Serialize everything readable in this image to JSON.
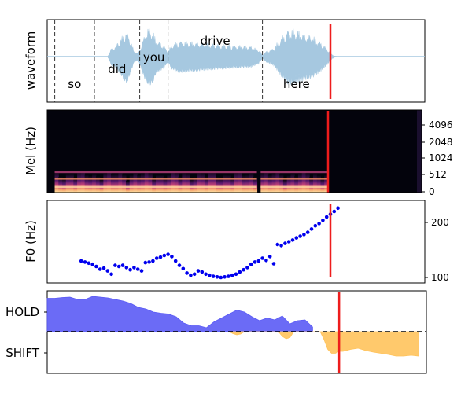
{
  "colors": {
    "waveform": "#a6c8e0",
    "cursor": "#ee1c1c",
    "word_boundary": "#333333",
    "f0_points": "#0000ee",
    "hold_fill": "#5b5bf5",
    "shift_fill": "#ffc35c",
    "spec_background": "#03030c"
  },
  "chart_data": [
    {
      "type": "line",
      "panel": "waveform",
      "ylabel": "waveform",
      "xlim": [
        0,
        100
      ],
      "cursor_x": 75,
      "words": [
        {
          "text": "so",
          "start": 2,
          "end": 12.5
        },
        {
          "text": "did",
          "start": 12.5,
          "end": 24.5
        },
        {
          "text": "you",
          "start": 24.5,
          "end": 32
        },
        {
          "text": "drive",
          "start": 32,
          "end": 57
        },
        {
          "text": "here",
          "start": 57,
          "end": 75
        }
      ],
      "boundaries": [
        2,
        12.5,
        24.5,
        32,
        57
      ],
      "envelope": [
        [
          0,
          0
        ],
        [
          16,
          0
        ],
        [
          17,
          0.25
        ],
        [
          18,
          0.3
        ],
        [
          19,
          0.45
        ],
        [
          20,
          0.6
        ],
        [
          21,
          0.75
        ],
        [
          22,
          0.5
        ],
        [
          23,
          0.15
        ],
        [
          24,
          0.1
        ],
        [
          25,
          0.35
        ],
        [
          26,
          0.7
        ],
        [
          27,
          0.85
        ],
        [
          28,
          0.7
        ],
        [
          29,
          0.45
        ],
        [
          30,
          0.4
        ],
        [
          31,
          0.3
        ],
        [
          32,
          0.15
        ],
        [
          33,
          0.35
        ],
        [
          35,
          0.45
        ],
        [
          38,
          0.42
        ],
        [
          42,
          0.38
        ],
        [
          46,
          0.35
        ],
        [
          50,
          0.32
        ],
        [
          54,
          0.3
        ],
        [
          56,
          0.2
        ],
        [
          57,
          0.05
        ],
        [
          58,
          0.15
        ],
        [
          60,
          0.25
        ],
        [
          62,
          0.55
        ],
        [
          64,
          0.8
        ],
        [
          66,
          0.75
        ],
        [
          68,
          0.65
        ],
        [
          70,
          0.6
        ],
        [
          72,
          0.45
        ],
        [
          74,
          0.25
        ],
        [
          75,
          0.1
        ],
        [
          76,
          0.02
        ],
        [
          77,
          0
        ],
        [
          100,
          0
        ]
      ]
    },
    {
      "type": "heatmap",
      "panel": "mel",
      "ylabel": "Mel (Hz)",
      "yticks": [
        "0",
        "512",
        "1024",
        "2048",
        "4096"
      ],
      "xlim": [
        0,
        100
      ],
      "cursor_x": 75,
      "active_ranges": [
        [
          2,
          56
        ],
        [
          57,
          75
        ]
      ]
    },
    {
      "type": "scatter",
      "panel": "f0",
      "ylabel": "F0 (Hz)",
      "xlim": [
        0,
        100
      ],
      "ylim": [
        90,
        240
      ],
      "yticks": [
        100,
        200
      ],
      "cursor_x": 75,
      "x": [
        9,
        10,
        11,
        12,
        13,
        14,
        15,
        16,
        17,
        18,
        19,
        20,
        21,
        22,
        23,
        24,
        25,
        26,
        27,
        28,
        29,
        30,
        31,
        32,
        33,
        34,
        35,
        36,
        37,
        38,
        39,
        40,
        41,
        42,
        43,
        44,
        45,
        46,
        47,
        48,
        49,
        50,
        51,
        52,
        53,
        54,
        55,
        56,
        57,
        58,
        59,
        60,
        61,
        62,
        63,
        64,
        65,
        66,
        67,
        68,
        69,
        70,
        71,
        72,
        73,
        74,
        75,
        76
      ],
      "y": [
        130,
        128,
        126,
        124,
        120,
        115,
        117,
        112,
        106,
        122,
        120,
        122,
        118,
        114,
        118,
        115,
        112,
        127,
        128,
        130,
        135,
        137,
        140,
        142,
        138,
        130,
        122,
        116,
        108,
        104,
        106,
        112,
        110,
        106,
        104,
        102,
        101,
        100,
        101,
        102,
        104,
        106,
        110,
        114,
        118,
        124,
        128,
        130,
        135,
        131,
        138,
        125,
        160,
        158,
        162,
        165,
        168,
        172,
        175,
        178,
        182,
        188,
        194,
        198,
        204,
        210,
        215,
        220
      ],
      "extra_points": [
        {
          "x": 77,
          "y": 226
        }
      ]
    },
    {
      "type": "area",
      "panel": "hold_shift",
      "yticks": [
        "HOLD",
        "SHIFT"
      ],
      "xlim": [
        0,
        100
      ],
      "cursor_x": 77,
      "series": [
        {
          "name": "HOLD",
          "x": [
            0,
            2,
            4,
            6,
            8,
            10,
            12,
            14,
            16,
            18,
            20,
            22,
            24,
            26,
            28,
            30,
            32,
            34,
            36,
            38,
            40,
            42,
            44,
            46,
            48,
            50,
            52,
            54,
            56,
            58,
            60,
            62,
            64,
            66,
            68,
            70
          ],
          "values": [
            0.85,
            0.85,
            0.87,
            0.88,
            0.82,
            0.82,
            0.9,
            0.88,
            0.86,
            0.82,
            0.78,
            0.72,
            0.62,
            0.58,
            0.5,
            0.47,
            0.45,
            0.38,
            0.22,
            0.15,
            0.15,
            0.1,
            0.25,
            0.35,
            0.45,
            0.55,
            0.5,
            0.38,
            0.28,
            0.35,
            0.3,
            0.4,
            0.2,
            0.28,
            0.3,
            0.12
          ]
        },
        {
          "name": "SHIFT",
          "x": [
            48,
            49,
            50,
            51,
            52,
            61,
            62,
            63,
            64,
            65,
            72,
            73,
            74,
            75,
            76,
            77,
            78,
            80,
            82,
            84,
            86,
            88,
            90,
            92,
            94,
            96,
            98
          ],
          "values": [
            0,
            -0.05,
            -0.08,
            -0.06,
            0,
            0,
            -0.12,
            -0.18,
            -0.15,
            0,
            0,
            -0.2,
            -0.45,
            -0.55,
            -0.55,
            -0.5,
            -0.5,
            -0.45,
            -0.42,
            -0.48,
            -0.52,
            -0.55,
            -0.58,
            -0.62,
            -0.62,
            -0.6,
            -0.62
          ]
        }
      ]
    }
  ]
}
